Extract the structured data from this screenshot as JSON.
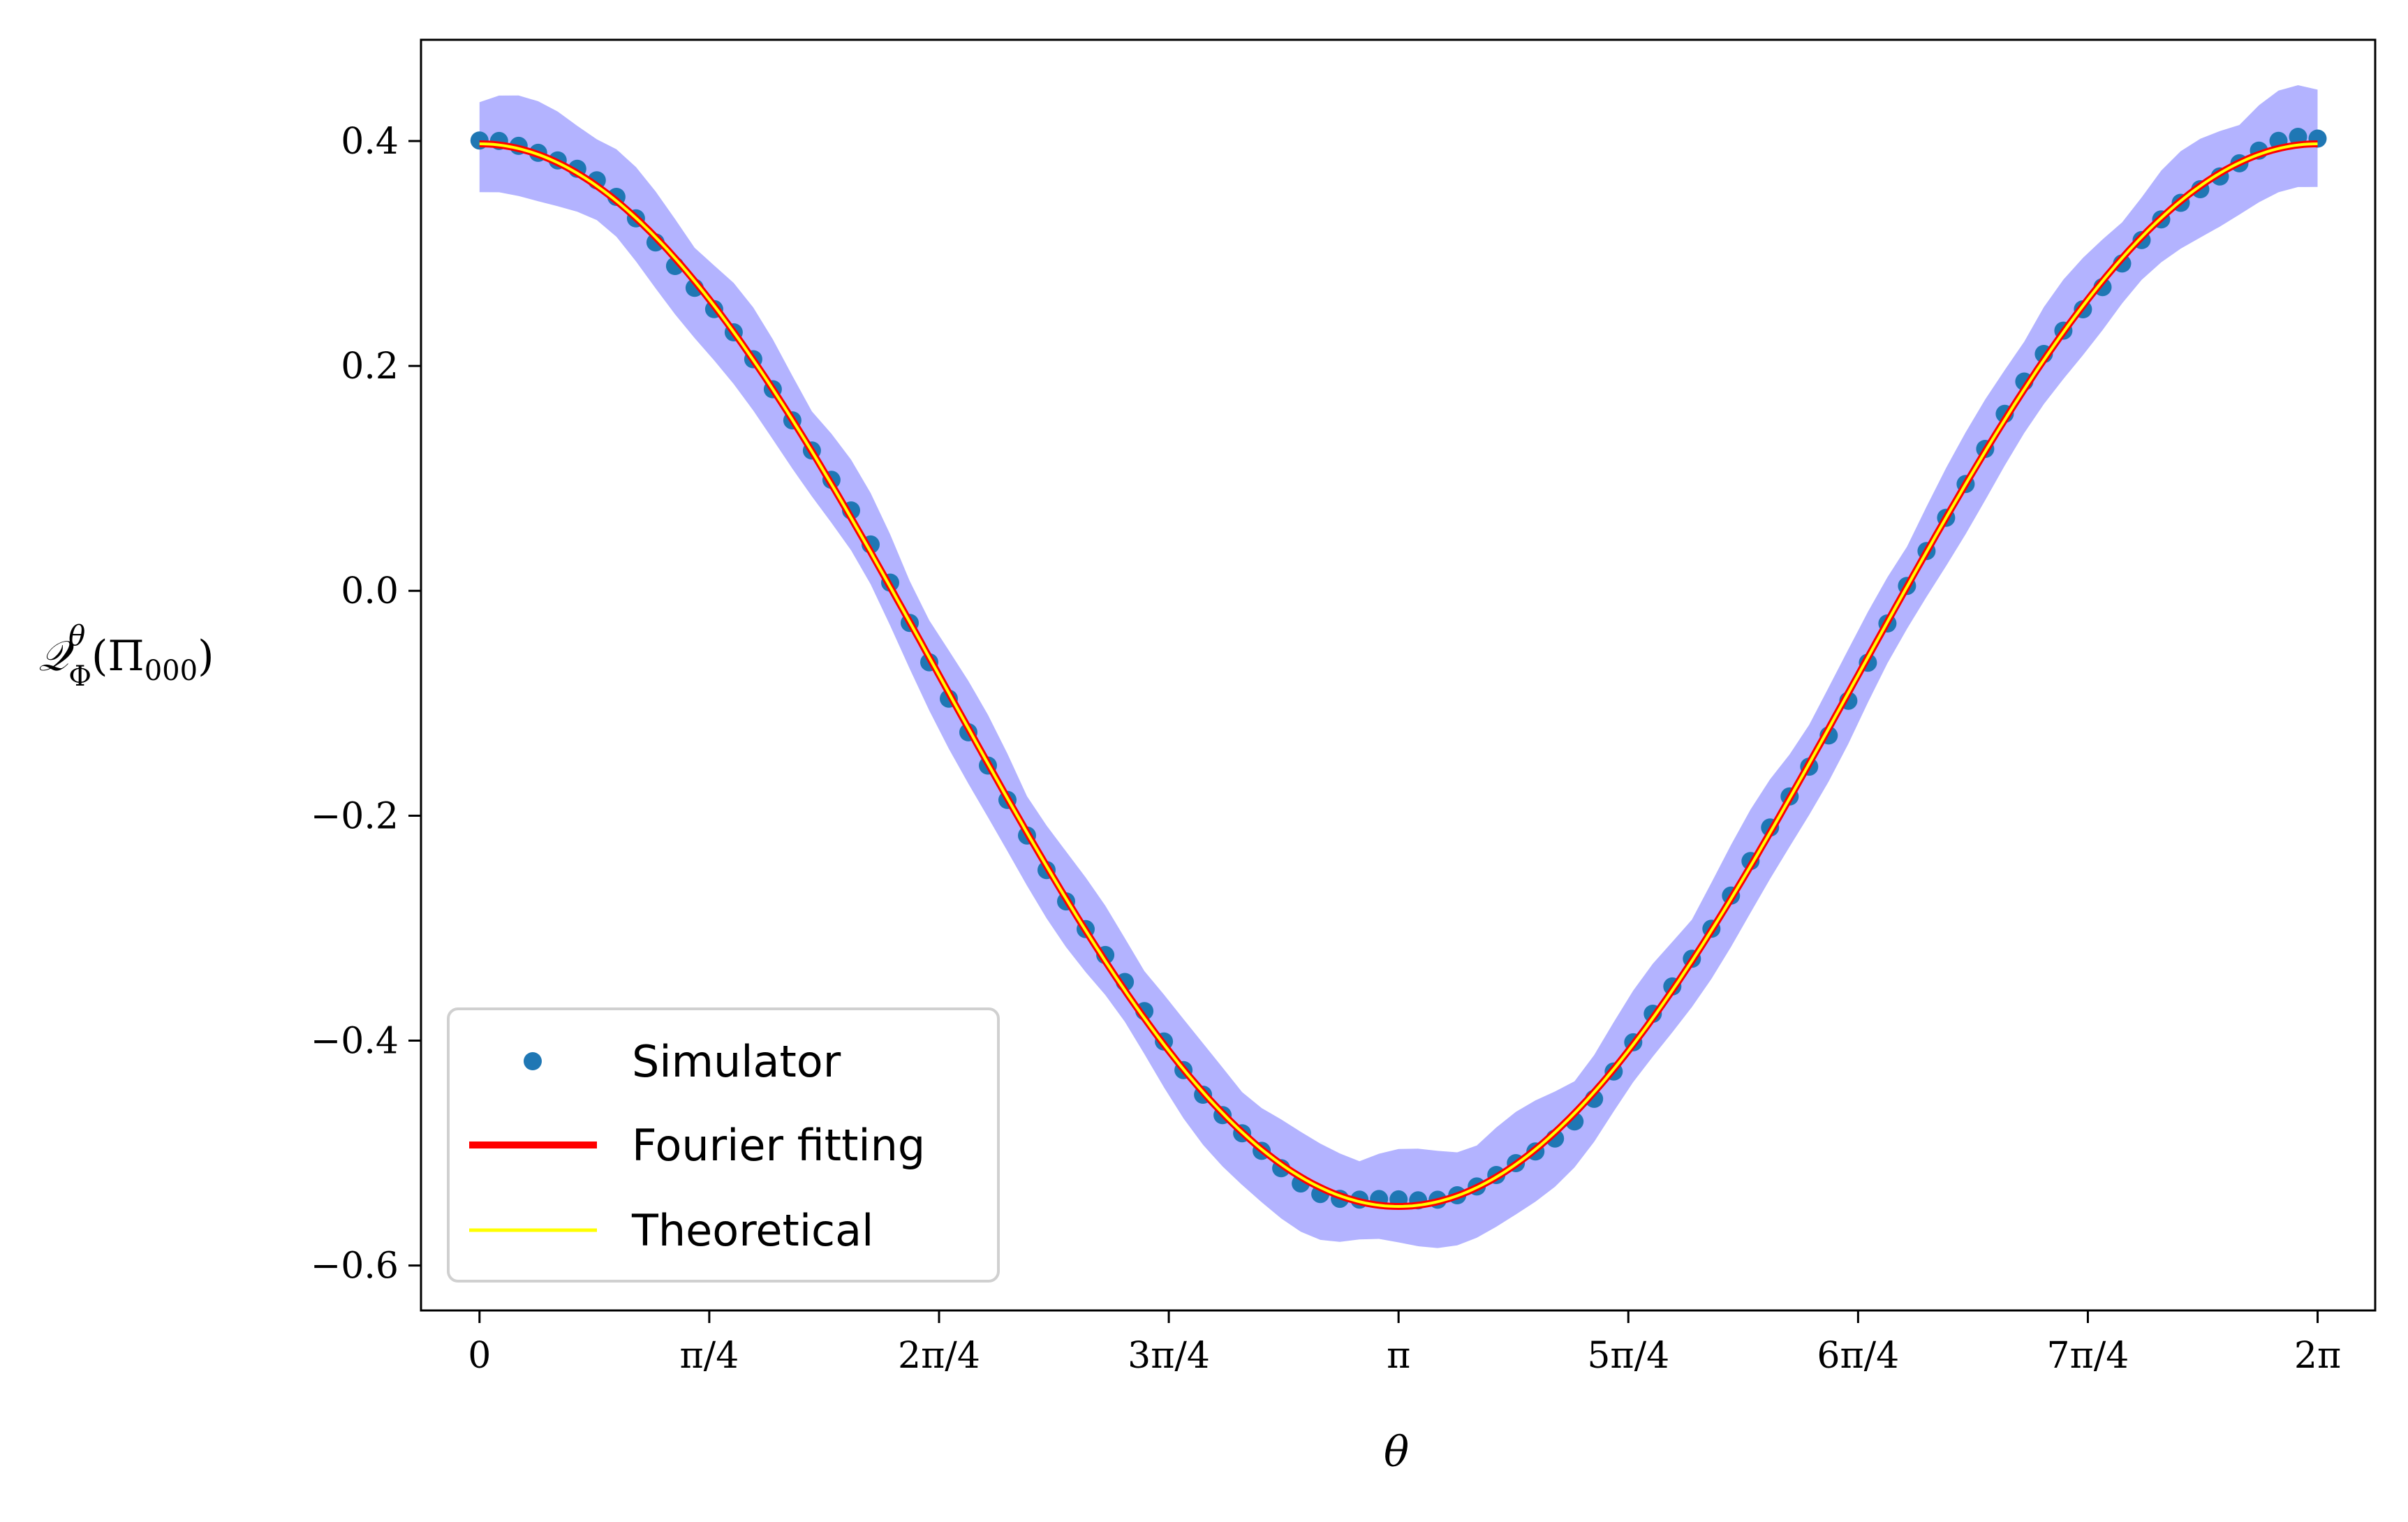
{
  "chart_data": {
    "type": "line",
    "title": "",
    "xlabel": "θ",
    "ylabel": {
      "base": "𝒬",
      "sup": "θ",
      "sub": "Φ",
      "arg_open": "(Π",
      "arg_sub": "000",
      "arg_close": ")"
    },
    "xlim": [
      -0.2,
      6.48
    ],
    "ylim": [
      -0.64,
      0.49
    ],
    "x_ticks": [
      0,
      0.7854,
      1.5708,
      2.3562,
      3.1416,
      3.927,
      4.7124,
      5.4978,
      6.2832
    ],
    "x_tick_labels": [
      "0",
      "π/4",
      "2π/4",
      "3π/4",
      "π",
      "5π/4",
      "6π/4",
      "7π/4",
      "2π"
    ],
    "y_ticks": [
      0.4,
      0.2,
      0.0,
      -0.2,
      -0.4,
      -0.6
    ],
    "y_tick_labels": [
      "0.4",
      "0.2",
      "0.0",
      "−0.2",
      "−0.4",
      "−0.6"
    ],
    "grid": false,
    "legend": {
      "placement": "lower-left",
      "entries": [
        {
          "label": "Simulator",
          "marker": "dot",
          "color": "#1f77b4"
        },
        {
          "label": "Fourier fitting",
          "marker": "line",
          "color": "#ff0000"
        },
        {
          "label": "Theoretical",
          "marker": "line",
          "color": "#ffff00"
        }
      ]
    },
    "series": [
      {
        "name": "Simulator",
        "kind": "scatter",
        "color": "#1f77b4",
        "function": "-0.075 + 0.4725*cos(theta)",
        "x_range": [
          0,
          6.2832
        ],
        "n_points": 95,
        "band_halfwidth_approx": 0.04,
        "band_color": "#b3b3ff"
      },
      {
        "name": "Fourier fitting",
        "kind": "line",
        "color": "#ff0000",
        "function": "-0.075 + 0.4725*cos(theta)",
        "x_range": [
          0,
          6.2832
        ]
      },
      {
        "name": "Theoretical",
        "kind": "line",
        "color": "#ffff00",
        "function": "-0.075 + 0.4725*cos(theta)",
        "x_range": [
          0,
          6.2832
        ]
      }
    ]
  }
}
